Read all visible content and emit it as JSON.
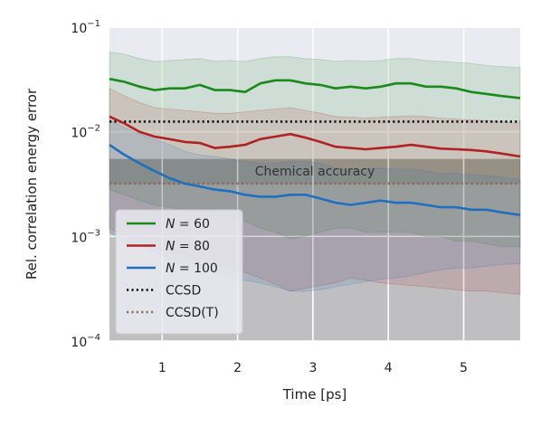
{
  "chart_data": {
    "type": "line",
    "title": "",
    "xlabel": "Time [ps]",
    "ylabel": "Rel. correlation energy error",
    "xlim": [
      0.3,
      5.75
    ],
    "ylim": [
      0.0001,
      0.1
    ],
    "yscale": "log",
    "grid": true,
    "legend_position": "lower-left",
    "x_ticks": [
      1,
      2,
      3,
      4,
      5
    ],
    "x_tick_labels": [
      "1",
      "2",
      "3",
      "4",
      "5"
    ],
    "y_ticks": [
      0.0001,
      0.001,
      0.01,
      0.1
    ],
    "y_tick_labels": [
      {
        "base": "10",
        "exp": "−4"
      },
      {
        "base": "10",
        "exp": "−3"
      },
      {
        "base": "10",
        "exp": "−2"
      },
      {
        "base": "10",
        "exp": "−1"
      }
    ],
    "series": [
      {
        "name": "N = 60",
        "legend_main": "N",
        "legend_value": " = 60",
        "color": "#1a8a1a",
        "x": [
          0.3,
          0.5,
          0.7,
          0.9,
          1.1,
          1.3,
          1.5,
          1.7,
          1.9,
          2.1,
          2.3,
          2.5,
          2.7,
          2.9,
          3.1,
          3.3,
          3.5,
          3.7,
          3.9,
          4.1,
          4.3,
          4.5,
          4.7,
          4.9,
          5.1,
          5.3,
          5.5,
          5.75
        ],
        "y": [
          0.032,
          0.03,
          0.027,
          0.025,
          0.026,
          0.026,
          0.028,
          0.025,
          0.025,
          0.024,
          0.029,
          0.031,
          0.031,
          0.029,
          0.028,
          0.026,
          0.027,
          0.026,
          0.027,
          0.029,
          0.029,
          0.027,
          0.027,
          0.026,
          0.024,
          0.023,
          0.022,
          0.021
        ],
        "lower": [
          0.0028,
          0.0025,
          0.0022,
          0.002,
          0.0019,
          0.0018,
          0.0017,
          0.0016,
          0.0015,
          0.0014,
          0.0012,
          0.0011,
          0.00095,
          0.001,
          0.0011,
          0.0012,
          0.0012,
          0.0011,
          0.0011,
          0.0011,
          0.0011,
          0.001,
          0.001,
          0.0009,
          0.0009,
          0.00085,
          0.0008,
          0.0008
        ],
        "upper": [
          0.058,
          0.055,
          0.05,
          0.047,
          0.048,
          0.049,
          0.05,
          0.047,
          0.048,
          0.047,
          0.05,
          0.052,
          0.052,
          0.05,
          0.049,
          0.047,
          0.048,
          0.047,
          0.048,
          0.05,
          0.05,
          0.048,
          0.047,
          0.046,
          0.045,
          0.043,
          0.042,
          0.041
        ]
      },
      {
        "name": "N = 80",
        "legend_main": "N",
        "legend_value": " = 80",
        "color": "#b22222",
        "x": [
          0.3,
          0.5,
          0.7,
          0.9,
          1.1,
          1.3,
          1.5,
          1.7,
          1.9,
          2.1,
          2.3,
          2.5,
          2.7,
          2.9,
          3.1,
          3.3,
          3.5,
          3.7,
          3.9,
          4.1,
          4.3,
          4.5,
          4.7,
          4.9,
          5.1,
          5.3,
          5.5,
          5.75
        ],
        "y": [
          0.014,
          0.012,
          0.01,
          0.009,
          0.0085,
          0.008,
          0.0078,
          0.007,
          0.0072,
          0.0075,
          0.0085,
          0.009,
          0.0095,
          0.0088,
          0.008,
          0.0072,
          0.007,
          0.0068,
          0.007,
          0.0072,
          0.0075,
          0.0072,
          0.0069,
          0.0068,
          0.0067,
          0.0065,
          0.0062,
          0.0058
        ],
        "lower": [
          0.0012,
          0.001,
          0.0009,
          0.0008,
          0.0007,
          0.00065,
          0.0006,
          0.00055,
          0.0005,
          0.00045,
          0.0004,
          0.00035,
          0.0003,
          0.00032,
          0.00034,
          0.00036,
          0.0004,
          0.00038,
          0.00036,
          0.00035,
          0.00034,
          0.00033,
          0.00032,
          0.00031,
          0.0003,
          0.0003,
          0.00029,
          0.00028
        ],
        "upper": [
          0.026,
          0.022,
          0.019,
          0.017,
          0.0165,
          0.016,
          0.0155,
          0.015,
          0.015,
          0.0155,
          0.016,
          0.0165,
          0.017,
          0.016,
          0.015,
          0.014,
          0.0138,
          0.0135,
          0.0138,
          0.014,
          0.0142,
          0.014,
          0.0135,
          0.0132,
          0.013,
          0.0128,
          0.0125,
          0.012
        ]
      },
      {
        "name": "N = 100",
        "legend_main": "N",
        "legend_value": " = 100",
        "color": "#1f6fbf",
        "x": [
          0.3,
          0.5,
          0.7,
          0.9,
          1.1,
          1.3,
          1.5,
          1.7,
          1.9,
          2.1,
          2.3,
          2.5,
          2.7,
          2.9,
          3.1,
          3.3,
          3.5,
          3.7,
          3.9,
          4.1,
          4.3,
          4.5,
          4.7,
          4.9,
          5.1,
          5.3,
          5.5,
          5.75
        ],
        "y": [
          0.0075,
          0.006,
          0.005,
          0.0042,
          0.0036,
          0.0032,
          0.003,
          0.0028,
          0.0027,
          0.0025,
          0.0024,
          0.0024,
          0.0025,
          0.0025,
          0.0023,
          0.0021,
          0.002,
          0.0021,
          0.0022,
          0.0021,
          0.0021,
          0.002,
          0.0019,
          0.0019,
          0.0018,
          0.0018,
          0.0017,
          0.0016
        ],
        "lower": [
          0.0011,
          0.0009,
          0.0008,
          0.0007,
          0.0006,
          0.00055,
          0.0005,
          0.00045,
          0.0004,
          0.00038,
          0.00036,
          0.00033,
          0.0003,
          0.0003,
          0.00031,
          0.00033,
          0.00035,
          0.00037,
          0.00039,
          0.0004,
          0.00042,
          0.00045,
          0.00048,
          0.0005,
          0.0005,
          0.00052,
          0.00054,
          0.00055
        ],
        "upper": [
          0.013,
          0.011,
          0.0095,
          0.0085,
          0.0075,
          0.0065,
          0.006,
          0.0058,
          0.0055,
          0.0052,
          0.005,
          0.005,
          0.0052,
          0.0052,
          0.005,
          0.0045,
          0.0042,
          0.0044,
          0.0045,
          0.0044,
          0.0044,
          0.0042,
          0.004,
          0.004,
          0.0039,
          0.0038,
          0.0037,
          0.0035
        ]
      }
    ],
    "reference_lines": [
      {
        "name": "CCSD",
        "y": 0.0125,
        "color": "#111111",
        "style": "dotted"
      },
      {
        "name": "CCSD(T)",
        "y": 0.0032,
        "color": "#8b6d55",
        "style": "dotted"
      }
    ],
    "band": {
      "label": "Chemical accuracy",
      "y_low": 0.00318,
      "y_high": 0.0055,
      "color": "#6b6b6b"
    },
    "background": {
      "y_low": 0.0001,
      "y_high": 0.0032,
      "color": "#9a9a9a"
    },
    "colors": {
      "plot_bg": "#eaeaf2",
      "grid": "#ffffff"
    }
  }
}
